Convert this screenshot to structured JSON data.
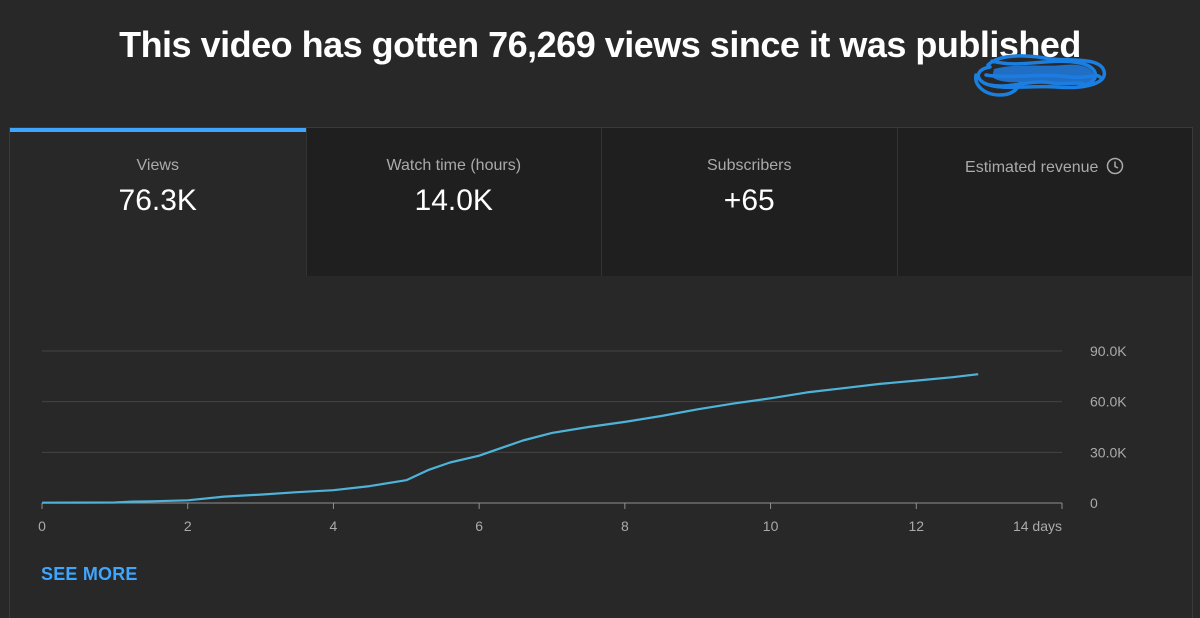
{
  "headline": "This video has gotten 76,269 views since it was published",
  "tabs": [
    {
      "label": "Views",
      "value": "76.3K",
      "active": true
    },
    {
      "label": "Watch time (hours)",
      "value": "14.0K",
      "active": false
    },
    {
      "label": "Subscribers",
      "value": "+65",
      "active": false
    },
    {
      "label": "Estimated revenue",
      "value": "",
      "redacted": true,
      "icon": "clock-icon",
      "active": false
    }
  ],
  "see_more": "SEE MORE",
  "colors": {
    "accent": "#3ea6ff",
    "line": "#4fb3d9",
    "background": "#282828"
  },
  "chart_data": {
    "type": "line",
    "xlabel": "",
    "ylabel": "",
    "x_ticks": [
      "0",
      "2",
      "4",
      "6",
      "8",
      "10",
      "12",
      "14 days"
    ],
    "x_tick_values": [
      0,
      2,
      4,
      6,
      8,
      10,
      12,
      14
    ],
    "y_ticks": [
      "0",
      "30.0K",
      "60.0K",
      "90.0K"
    ],
    "y_tick_values": [
      0,
      30000,
      60000,
      90000
    ],
    "xlim": [
      0,
      14
    ],
    "ylim": [
      0,
      90000
    ],
    "grid": true,
    "series": [
      {
        "x": [
          0,
          0.5,
          1,
          1.25,
          1.5,
          2,
          2.5,
          3,
          3.5,
          4,
          4.5,
          5,
          5.3,
          5.6,
          6,
          6.3,
          6.6,
          7,
          7.5,
          8,
          8.5,
          9,
          9.5,
          10,
          10.5,
          11,
          11.5,
          12,
          12.5,
          12.85
        ],
        "y": [
          200,
          250,
          300,
          800,
          1000,
          1600,
          3800,
          5000,
          6400,
          7600,
          10000,
          13500,
          19500,
          24000,
          28000,
          32500,
          37000,
          41500,
          45000,
          48000,
          51500,
          55500,
          59000,
          62000,
          65500,
          68000,
          70500,
          72500,
          74500,
          76269
        ]
      }
    ]
  }
}
